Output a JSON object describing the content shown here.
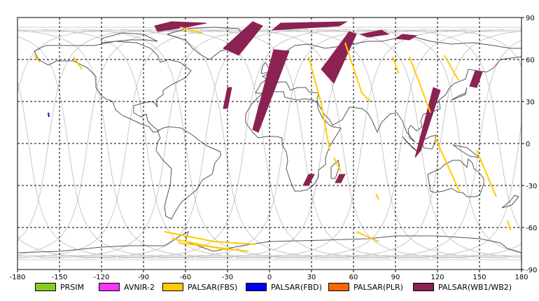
{
  "map": {
    "lon_min": -180,
    "lon_max": 180,
    "lat_min": -90,
    "lat_max": 90,
    "x_ticks": [
      "-180",
      "-150",
      "-120",
      "-90",
      "-60",
      "-30",
      "0",
      "30",
      "60",
      "90",
      "120",
      "150",
      "180"
    ],
    "y_ticks": [
      "90",
      "60",
      "30",
      "0",
      "-30",
      "-60",
      "-90"
    ],
    "x_tick_values": [
      -180,
      -150,
      -120,
      -90,
      -60,
      -30,
      0,
      30,
      60,
      90,
      120,
      150,
      180
    ],
    "y_tick_values": [
      90,
      60,
      30,
      0,
      -30,
      -60,
      -90
    ]
  },
  "legend": {
    "items": [
      {
        "label": "PRSIM",
        "color": "#88cc22"
      },
      {
        "label": "AVNIR-2",
        "color": "#ff33ff"
      },
      {
        "label": "PALSAR(FBS)",
        "color": "#ffcc00"
      },
      {
        "label": "PALSAR(FBD)",
        "color": "#0000ee"
      },
      {
        "label": "PALSAR(PLR)",
        "color": "#ff6600"
      },
      {
        "label": "PALSAR(WB1/WB2)",
        "color": "#8b2252"
      }
    ]
  },
  "colors": {
    "coastline": "#555555",
    "orbit_track": "#bbbbbb",
    "grid": "#000000",
    "fbs": "#ffcc00",
    "fbd": "#0000ee",
    "wb": "#8b2252"
  },
  "observations": {
    "wb_swaths": [
      {
        "lon": [
          -82,
          -70,
          -45,
          -60,
          -80
        ],
        "lat": [
          84,
          87,
          86,
          83,
          80
        ]
      },
      {
        "lon": [
          -33,
          -12,
          -5,
          -22
        ],
        "lat": [
          68,
          87,
          84,
          63
        ]
      },
      {
        "lon": [
          -30,
          -27,
          -30,
          -33
        ],
        "lat": [
          40,
          40,
          25,
          25
        ]
      },
      {
        "lon": [
          8,
          55,
          50,
          2
        ],
        "lat": [
          86,
          87,
          84,
          81
        ]
      },
      {
        "lon": [
          3,
          14,
          -8,
          -12
        ],
        "lat": [
          67,
          66,
          8,
          10
        ]
      },
      {
        "lon": [
          37,
          57,
          62,
          46
        ],
        "lat": [
          53,
          80,
          78,
          43
        ]
      },
      {
        "lon": [
          65,
          80,
          85,
          70
        ],
        "lat": [
          78,
          81,
          78,
          76
        ]
      },
      {
        "lon": [
          95,
          105,
          100,
          90
        ],
        "lat": [
          78,
          77,
          74,
          75
        ]
      },
      {
        "lon": [
          117,
          122,
          108,
          104
        ],
        "lat": [
          40,
          38,
          -5,
          -10
        ]
      },
      {
        "lon": [
          147,
          152,
          148,
          143
        ],
        "lat": [
          52,
          51,
          40,
          41
        ]
      },
      {
        "lon": [
          28,
          32,
          28,
          24
        ],
        "lat": [
          -22,
          -22,
          -30,
          -30
        ]
      },
      {
        "lon": [
          50,
          54,
          51,
          47
        ],
        "lat": [
          -22,
          -22,
          -28,
          -28
        ]
      }
    ],
    "fbs_lines": [
      {
        "lon": [
          -168,
          -164
        ],
        "lat": [
          63,
          58
        ]
      },
      {
        "lon": [
          -140,
          -134
        ],
        "lat": [
          62,
          53
        ]
      },
      {
        "lon": [
          -64,
          -48
        ],
        "lat": [
          83,
          79
        ]
      },
      {
        "lon": [
          28,
          37,
          43
        ],
        "lat": [
          62,
          28,
          -5
        ]
      },
      {
        "lon": [
          46,
          51
        ],
        "lat": [
          -10,
          -20
        ]
      },
      {
        "lon": [
          54,
          66,
          72
        ],
        "lat": [
          72,
          36,
          30
        ]
      },
      {
        "lon": [
          88,
          92
        ],
        "lat": [
          62,
          50
        ]
      },
      {
        "lon": [
          100,
          115
        ],
        "lat": [
          62,
          22
        ]
      },
      {
        "lon": [
          118,
          136
        ],
        "lat": [
          5,
          -35
        ]
      },
      {
        "lon": [
          125,
          135
        ],
        "lat": [
          63,
          45
        ]
      },
      {
        "lon": [
          148,
          162
        ],
        "lat": [
          -5,
          -38
        ]
      },
      {
        "lon": [
          76,
          78
        ],
        "lat": [
          -36,
          -40
        ]
      },
      {
        "lon": [
          62,
          78
        ],
        "lat": [
          -63,
          -70
        ]
      },
      {
        "lon": [
          -75,
          -40,
          -10
        ],
        "lat": [
          -63,
          -70,
          -72
        ]
      },
      {
        "lon": [
          -70,
          -30
        ],
        "lat": [
          -68,
          -76
        ]
      },
      {
        "lon": [
          -65,
          -15
        ],
        "lat": [
          -71,
          -77
        ]
      },
      {
        "lon": [
          170,
          172
        ],
        "lat": [
          -55,
          -62
        ]
      }
    ],
    "fbd_marks": [
      {
        "lon": [
          -158,
          -157.5
        ],
        "lat": [
          22,
          19
        ]
      }
    ]
  }
}
